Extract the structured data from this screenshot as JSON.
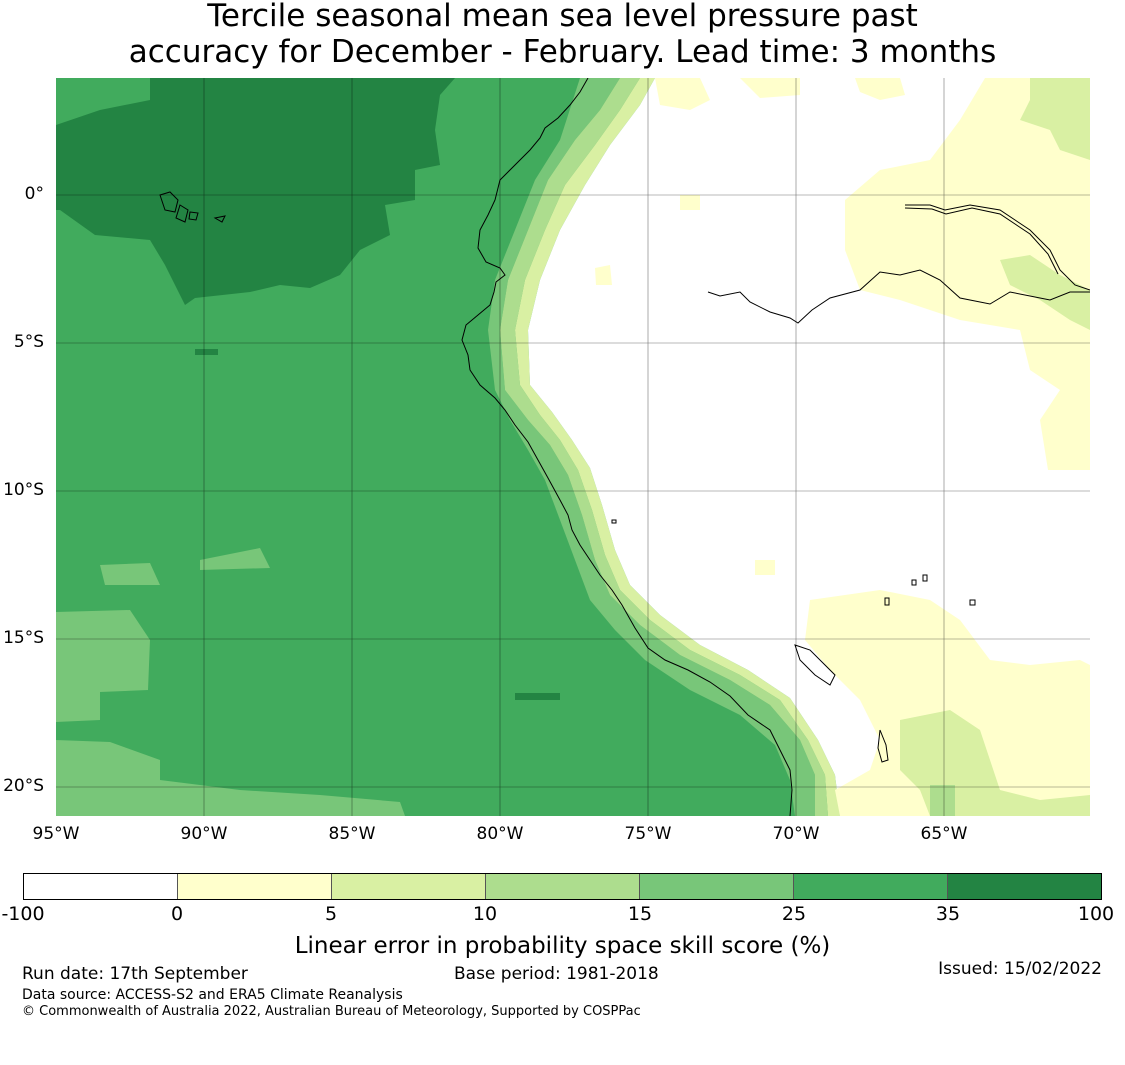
{
  "title": {
    "line1": "Tercile seasonal mean sea level pressure past",
    "line2": "accuracy for December - February. Lead time: 3 months"
  },
  "map": {
    "lat_labels": [
      "0°",
      "5°S",
      "10°S",
      "15°S",
      "20°S"
    ],
    "lon_labels": [
      "95°W",
      "90°W",
      "85°W",
      "80°W",
      "75°W",
      "70°W",
      "65°W"
    ],
    "colors": {
      "c_neg": "#ffffff",
      "c0_5": "#ffffcc",
      "c5_10": "#d9f0a3",
      "c10_15": "#addd8e",
      "c15_25": "#78c679",
      "c25_35": "#41ab5d",
      "c35_100": "#238443",
      "coast": "#000000",
      "grid": "#000000"
    }
  },
  "colorbar": {
    "ticks": [
      "-100",
      "0",
      "5",
      "10",
      "15",
      "25",
      "35",
      "100"
    ],
    "colors": [
      "#ffffff",
      "#ffffcc",
      "#d9f0a3",
      "#addd8e",
      "#78c679",
      "#41ab5d",
      "#238443"
    ],
    "label": "Linear error in probability space skill score (%)"
  },
  "footer": {
    "run_date": "Run date: 17th September",
    "base_period": "Base period: 1981-2018",
    "issued": "Issued: 15/02/2022",
    "data_source": "Data source: ACCESS-S2 and ERA5 Climate Reanalysis",
    "copyright": "© Commonwealth of Australia 2022, Australian Bureau of Meteorology, Supported by COSPPac"
  }
}
